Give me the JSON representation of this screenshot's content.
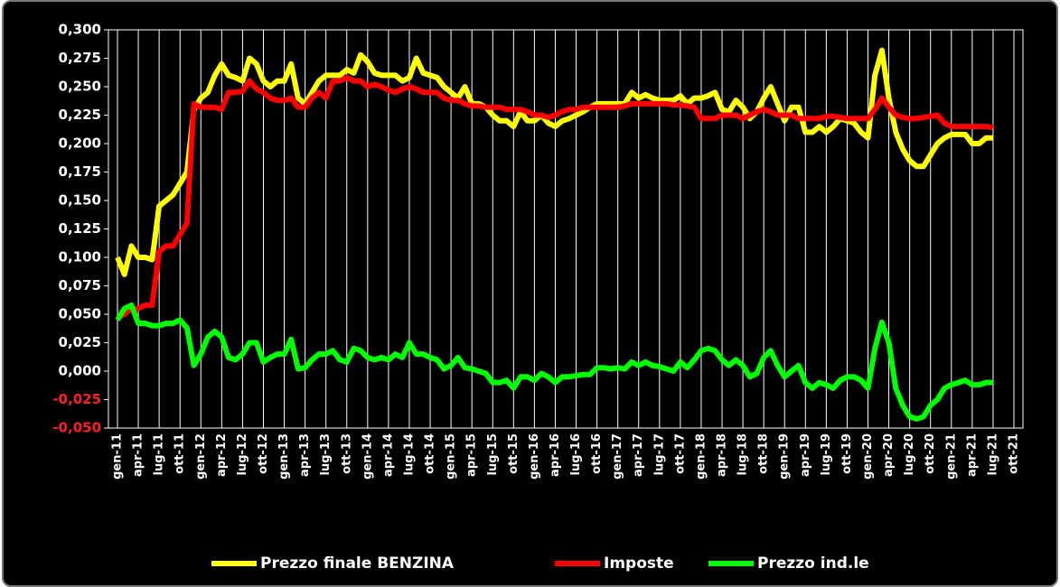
{
  "chart_data": {
    "type": "line",
    "categories": [
      "gen-11",
      null,
      null,
      "apr-11",
      null,
      null,
      "lug-11",
      null,
      null,
      "ott-11",
      null,
      null,
      "gen-12",
      null,
      null,
      "apr-12",
      null,
      null,
      "lug-12",
      null,
      null,
      "ott-12",
      null,
      null,
      "gen-13",
      null,
      null,
      "apr-13",
      null,
      null,
      "lug-13",
      null,
      null,
      "ott-13",
      null,
      null,
      "gen-14",
      null,
      null,
      "apr-14",
      null,
      null,
      "lug-14",
      null,
      null,
      "ott-14",
      null,
      null,
      "gen-15",
      null,
      null,
      "apr-15",
      null,
      null,
      "lug-15",
      null,
      null,
      "ott-15",
      null,
      null,
      "gen-16",
      null,
      null,
      "apr-16",
      null,
      null,
      "lug-16",
      null,
      null,
      "ott-16",
      null,
      null,
      "gen-17",
      null,
      null,
      "apr-17",
      null,
      null,
      "lug-17",
      null,
      null,
      "ott-17",
      null,
      null,
      "gen-18",
      null,
      null,
      "apr-18",
      null,
      null,
      "lug-18",
      null,
      null,
      "ott-18",
      null,
      null,
      "gen-19",
      null,
      null,
      "apr-19",
      null,
      null,
      "lug-19",
      null,
      null,
      "ott-19",
      null,
      null,
      "gen-20",
      null,
      null,
      "apr-20",
      null,
      null,
      "lug-20",
      null,
      null,
      "ott-20",
      null,
      null,
      "gen-21",
      null,
      null,
      "apr-21",
      null,
      null,
      "lug-21",
      null,
      null,
      "ott-21"
    ],
    "series": [
      {
        "name": "Prezzo finale BENZINA",
        "color": "#ffff00",
        "values": [
          0.1,
          0.085,
          0.11,
          0.1,
          0.1,
          0.098,
          0.145,
          0.15,
          0.155,
          0.165,
          0.175,
          0.23,
          0.24,
          0.245,
          0.26,
          0.27,
          0.26,
          0.258,
          0.255,
          0.275,
          0.27,
          0.255,
          0.25,
          0.255,
          0.255,
          0.27,
          0.24,
          0.235,
          0.245,
          0.255,
          0.26,
          0.26,
          0.26,
          0.265,
          0.262,
          0.278,
          0.272,
          0.262,
          0.26,
          0.26,
          0.26,
          0.255,
          0.258,
          0.275,
          0.262,
          0.26,
          0.258,
          0.25,
          0.245,
          0.24,
          0.25,
          0.235,
          0.235,
          0.232,
          0.225,
          0.22,
          0.22,
          0.215,
          0.228,
          0.22,
          0.22,
          0.225,
          0.218,
          0.215,
          0.22,
          0.222,
          0.225,
          0.228,
          0.232,
          0.235,
          0.235,
          0.235,
          0.235,
          0.235,
          0.245,
          0.24,
          0.243,
          0.24,
          0.238,
          0.238,
          0.238,
          0.242,
          0.235,
          0.24,
          0.24,
          0.242,
          0.245,
          0.23,
          0.228,
          0.238,
          0.232,
          0.222,
          0.228,
          0.24,
          0.25,
          0.235,
          0.22,
          0.232,
          0.232,
          0.21,
          0.21,
          0.215,
          0.21,
          0.215,
          0.222,
          0.22,
          0.218,
          0.21,
          0.205,
          0.26,
          0.282,
          0.24,
          0.21,
          0.195,
          0.185,
          0.18,
          0.18,
          0.19,
          0.2,
          0.205,
          0.208,
          0.208,
          0.208,
          0.2,
          0.2,
          0.205,
          0.205,
          null,
          null,
          null
        ]
      },
      {
        "name": "Imposte",
        "color": "#ff0000",
        "values": [
          0.047,
          0.05,
          0.055,
          0.055,
          0.058,
          0.058,
          0.105,
          0.11,
          0.11,
          0.12,
          0.13,
          0.235,
          0.232,
          0.232,
          0.232,
          0.23,
          0.245,
          0.245,
          0.246,
          0.255,
          0.248,
          0.245,
          0.24,
          0.238,
          0.238,
          0.24,
          0.232,
          0.232,
          0.24,
          0.245,
          0.24,
          0.255,
          0.255,
          0.258,
          0.255,
          0.255,
          0.25,
          0.252,
          0.25,
          0.247,
          0.245,
          0.248,
          0.25,
          0.248,
          0.245,
          0.245,
          0.245,
          0.24,
          0.238,
          0.238,
          0.235,
          0.233,
          0.233,
          0.232,
          0.232,
          0.232,
          0.23,
          0.23,
          0.23,
          0.228,
          0.225,
          0.225,
          0.223,
          0.225,
          0.228,
          0.23,
          0.23,
          0.232,
          0.232,
          0.232,
          0.232,
          0.232,
          0.232,
          0.233,
          0.235,
          0.235,
          0.235,
          0.235,
          0.235,
          0.235,
          0.234,
          0.234,
          0.233,
          0.232,
          0.222,
          0.222,
          0.222,
          0.225,
          0.225,
          0.225,
          0.222,
          0.225,
          0.228,
          0.23,
          0.228,
          0.225,
          0.225,
          0.225,
          0.222,
          0.222,
          0.222,
          0.222,
          0.224,
          0.224,
          0.223,
          0.222,
          0.222,
          0.222,
          0.222,
          0.23,
          0.24,
          0.232,
          0.225,
          0.223,
          0.222,
          0.222,
          0.223,
          0.224,
          0.225,
          0.218,
          0.215,
          0.215,
          0.215,
          0.215,
          0.215,
          0.215,
          0.214,
          null,
          null,
          null
        ]
      },
      {
        "name": "Prezzo ind.le",
        "color": "#00ff00",
        "values": [
          0.045,
          0.055,
          0.058,
          0.042,
          0.042,
          0.04,
          0.04,
          0.042,
          0.042,
          0.045,
          0.038,
          0.005,
          0.015,
          0.03,
          0.035,
          0.03,
          0.012,
          0.01,
          0.015,
          0.025,
          0.025,
          0.008,
          0.012,
          0.015,
          0.015,
          0.028,
          0.002,
          0.003,
          0.01,
          0.015,
          0.015,
          0.018,
          0.01,
          0.008,
          0.02,
          0.018,
          0.012,
          0.01,
          0.012,
          0.01,
          0.015,
          0.012,
          0.025,
          0.015,
          0.015,
          0.012,
          0.01,
          0.002,
          0.005,
          0.012,
          0.003,
          0.002,
          0,
          -0.002,
          -0.01,
          -0.01,
          -0.008,
          -0.015,
          -0.005,
          -0.005,
          -0.008,
          -0.002,
          -0.005,
          -0.01,
          -0.005,
          -0.005,
          -0.004,
          -0.003,
          -0.003,
          0.003,
          0.003,
          0.002,
          0.003,
          0.002,
          0.008,
          0.005,
          0.008,
          0.005,
          0.004,
          0.002,
          0,
          0.008,
          0.003,
          0.01,
          0.018,
          0.02,
          0.018,
          0.01,
          0.005,
          0.01,
          0.005,
          -0.005,
          -0.002,
          0.012,
          0.018,
          0.005,
          -0.005,
          0,
          0.005,
          -0.01,
          -0.015,
          -0.01,
          -0.012,
          -0.015,
          -0.008,
          -0.005,
          -0.005,
          -0.008,
          -0.015,
          0.02,
          0.043,
          0.025,
          -0.015,
          -0.03,
          -0.04,
          -0.042,
          -0.04,
          -0.03,
          -0.025,
          -0.015,
          -0.012,
          -0.01,
          -0.008,
          -0.012,
          -0.012,
          -0.01,
          -0.01,
          null,
          null,
          null
        ]
      }
    ],
    "ylim": [
      -0.05,
      0.3
    ],
    "yticks": [
      {
        "value": -0.05,
        "label": "-0,050"
      },
      {
        "value": -0.025,
        "label": "-0,025"
      },
      {
        "value": 0,
        "label": "0,000"
      },
      {
        "value": 0.025,
        "label": "0,025"
      },
      {
        "value": 0.05,
        "label": "0,050"
      },
      {
        "value": 0.075,
        "label": "0,075"
      },
      {
        "value": 0.1,
        "label": "0,100"
      },
      {
        "value": 0.125,
        "label": "0,125"
      },
      {
        "value": 0.15,
        "label": "0,150"
      },
      {
        "value": 0.175,
        "label": "0,175"
      },
      {
        "value": 0.2,
        "label": "0,200"
      },
      {
        "value": 0.225,
        "label": "0,225"
      },
      {
        "value": 0.25,
        "label": "0,250"
      },
      {
        "value": 0.275,
        "label": "0,275"
      },
      {
        "value": 0.3,
        "label": "0,300"
      }
    ],
    "legend": "bottom"
  }
}
